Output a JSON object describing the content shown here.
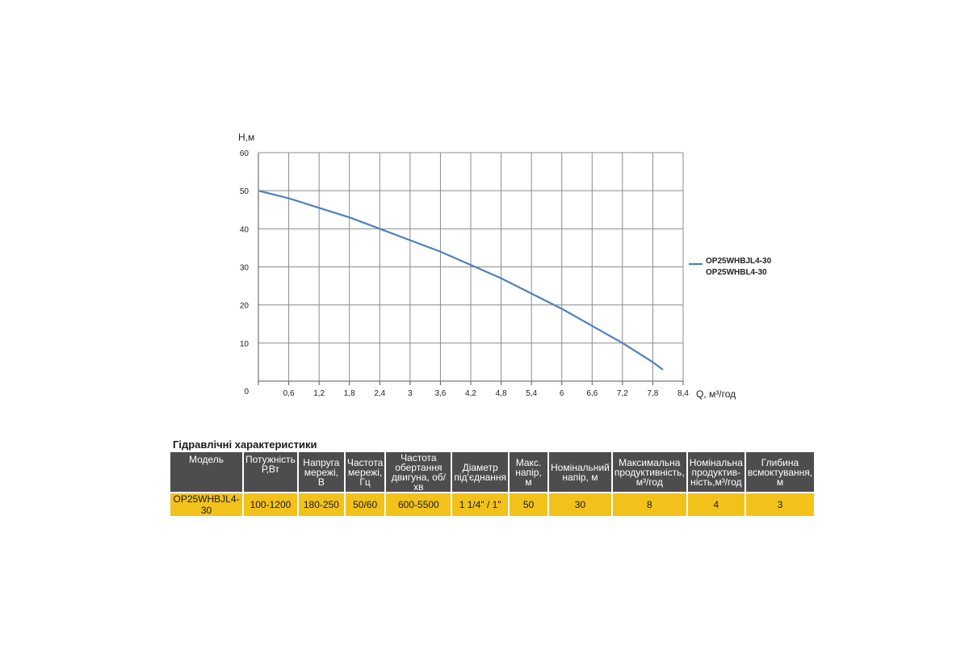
{
  "chart_data": {
    "type": "line",
    "ylabel": "H,м",
    "xlabel": "Q, м³/год",
    "xlim": [
      0,
      8.4
    ],
    "ylim": [
      0,
      60
    ],
    "x_ticks": [
      "0,6",
      "1,2",
      "1,8",
      "2,4",
      "3",
      "3,6",
      "4,2",
      "4,8",
      "5,4",
      "6",
      "6,6",
      "7,2",
      "7,8",
      "8,4"
    ],
    "y_ticks": [
      "0",
      "10",
      "20",
      "30",
      "40",
      "50",
      "60"
    ],
    "grid": true,
    "legend": [
      "OP25WHBJL4-30",
      "OP25WHBL4-30"
    ],
    "legend_position": "right",
    "series": [
      {
        "name": "OP25WHBJL4-30 / OP25WHBL4-30",
        "color": "#4f81bd",
        "x": [
          0,
          0.6,
          1.2,
          1.8,
          2.4,
          3.0,
          3.6,
          4.2,
          4.8,
          5.4,
          6.0,
          6.6,
          7.2,
          7.8,
          8.0
        ],
        "y": [
          50,
          48,
          45.5,
          43,
          40,
          37,
          34,
          30.5,
          27,
          23,
          19,
          14.5,
          10,
          5,
          3
        ]
      }
    ]
  },
  "table": {
    "title": "Гідравлічні характеристики",
    "headers": [
      "Модель",
      "Потужність Р,Вт",
      "Напруга мережі, В",
      "Частота мережі, Гц",
      "Частота обертання двигуна, об/хв",
      "Діаметр під'єднання",
      "Макс. напір, м",
      "Номінальний напір, м",
      "Максимальна продуктивність, м³/год",
      "Номінальна продуктив-ність,м³/год",
      "Глибина всмоктування, м"
    ],
    "rows": [
      [
        "OP25WHBJL4-30",
        "100-1200",
        "180-250",
        "50/60",
        "600-5500",
        "1 1/4\" / 1\"",
        "50",
        "30",
        "8",
        "4",
        "3"
      ]
    ]
  }
}
